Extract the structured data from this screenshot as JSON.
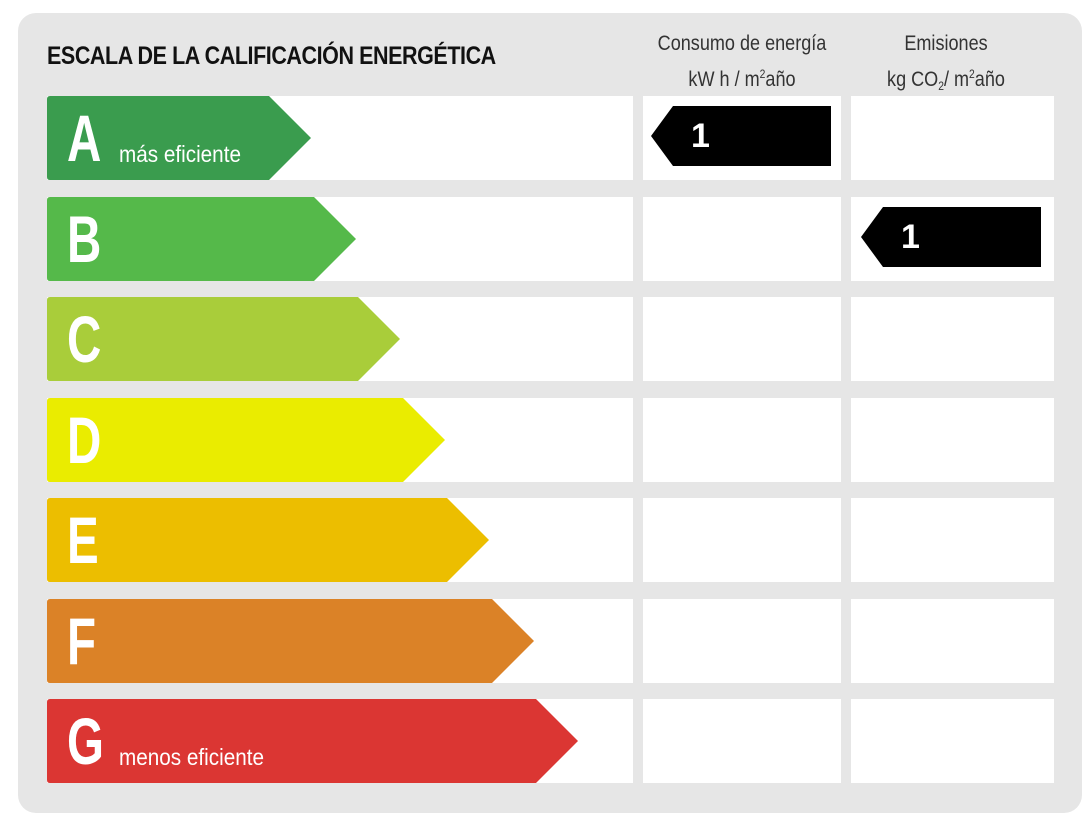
{
  "title": "ESCALA DE LA CALIFICACIÓN ENERGÉTICA",
  "columns": {
    "energy": {
      "line1": "Consumo de energía",
      "line2_pre": "kW h / m",
      "line2_sup": "2",
      "line2_post": "año"
    },
    "emissions": {
      "line1": "Emisiones",
      "line2_pre": "kg CO",
      "line2_sub": "2",
      "line2_mid": "/ m",
      "line2_sup": "2",
      "line2_post": "año"
    }
  },
  "ratings": [
    {
      "letter": "A",
      "label": "más eficiente",
      "color": "#3a9c4e"
    },
    {
      "letter": "B",
      "label": "",
      "color": "#55b94a"
    },
    {
      "letter": "C",
      "label": "",
      "color": "#a9cd3a"
    },
    {
      "letter": "D",
      "label": "",
      "color": "#eaec00"
    },
    {
      "letter": "E",
      "label": "",
      "color": "#ecbe00"
    },
    {
      "letter": "F",
      "label": "",
      "color": "#db8227"
    },
    {
      "letter": "G",
      "label": "menos eficiente",
      "color": "#db3633"
    }
  ],
  "markers": {
    "energy": {
      "rating": "A",
      "value": "1"
    },
    "emissions": {
      "rating": "B",
      "value": "1"
    }
  }
}
